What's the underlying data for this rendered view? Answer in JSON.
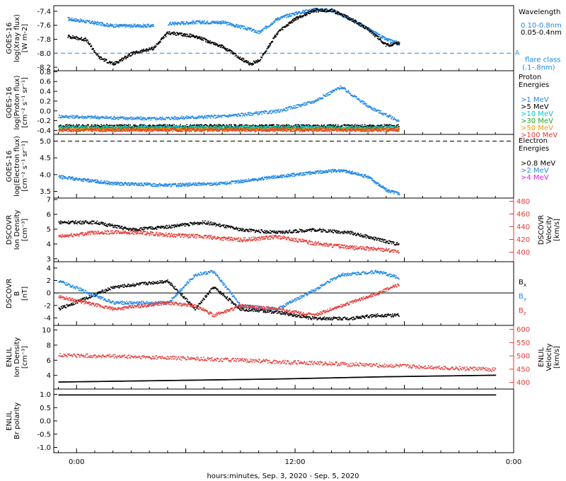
{
  "figure": {
    "xlabel": "hours:minutes, Sep.  3, 2020 - Sep.  5, 2020",
    "xticks": [
      "0:00",
      "12:00",
      "0:00"
    ],
    "colors": {
      "black": "#000000",
      "blue": "#1e88e5",
      "red": "#e53935",
      "cyan": "#00c8d0",
      "green": "#22aa22",
      "orange": "#f0a000",
      "magenta": "#e020e0"
    }
  },
  "chart_data": [
    {
      "type": "scatter",
      "id": "xray",
      "ylabel": [
        "GOES-16",
        "log(Xray flux)",
        "[W m-2]"
      ],
      "yticks": [
        "-7.4",
        "-7.6",
        "-7.8",
        "-8.0",
        "-8.2"
      ],
      "ylim": [
        -8.25,
        -7.32
      ],
      "legend_title": "Wavelength",
      "series": [
        {
          "name": "0.10-0.8nm",
          "color": "#1e88e5",
          "x": [
            -0.5,
            2.0,
            4.2,
            5.0,
            6.5,
            8.0,
            9.5,
            10.0,
            11.0,
            12.0,
            13.0,
            14.0,
            15.0,
            16.0,
            17.0,
            17.7
          ],
          "y": [
            -7.5,
            -7.6,
            -7.6,
            -7.57,
            -7.55,
            -7.55,
            -7.65,
            -7.7,
            -7.5,
            -7.42,
            -7.37,
            -7.38,
            -7.5,
            -7.65,
            -7.8,
            -7.85
          ]
        },
        {
          "name": "0.05-0.4nm",
          "color": "#000000",
          "x": [
            -0.5,
            0.5,
            1.2,
            2.0,
            3.0,
            4.2,
            5.0,
            6.5,
            8.0,
            9.5,
            10.0,
            11.0,
            12.0,
            13.0,
            14.0,
            15.0,
            16.0,
            17.0,
            17.7
          ],
          "y": [
            -7.75,
            -7.8,
            -8.05,
            -8.15,
            -8.0,
            -7.92,
            -7.7,
            -7.75,
            -7.9,
            -8.15,
            -8.1,
            -7.7,
            -7.5,
            -7.38,
            -7.38,
            -7.5,
            -7.65,
            -7.88,
            -7.85
          ]
        }
      ],
      "annotations": [
        "A",
        "flare class",
        "(.1-.8nm)"
      ],
      "reference_line": -8.0
    },
    {
      "type": "scatter",
      "id": "proton",
      "ylabel": [
        "GOES-16",
        "log(Proton flux)",
        "[cm⁻² s⁻¹ sr⁻¹]"
      ],
      "yticks": [
        "0.8",
        "0.6",
        "0.4",
        "0.2",
        "0.0",
        "-0.2",
        "-0.4"
      ],
      "ylim": [
        -0.48,
        0.82
      ],
      "legend_title": "Proton Energies",
      "series": [
        {
          "name": ">1 MeV",
          "color": "#1e88e5",
          "x": [
            -1.0,
            4.0,
            8.0,
            11.0,
            13.0,
            14.5,
            16.0,
            17.7
          ],
          "y": [
            -0.1,
            -0.15,
            -0.1,
            0.0,
            0.2,
            0.5,
            0.1,
            -0.2
          ]
        },
        {
          "name": ">5 MeV",
          "color": "#000000",
          "x": [
            -1.0,
            17.7
          ],
          "y": [
            -0.3,
            -0.3
          ]
        },
        {
          "name": ">10 MeV",
          "color": "#00c8d0",
          "x": [
            -1.0,
            17.7
          ],
          "y": [
            -0.33,
            -0.33
          ]
        },
        {
          "name": ">30 MeV",
          "color": "#22aa22",
          "x": [
            -1.0,
            17.7
          ],
          "y": [
            -0.35,
            -0.35
          ]
        },
        {
          "name": ">50 MeV",
          "color": "#f0a000",
          "x": [
            -1.0,
            17.7
          ],
          "y": [
            -0.37,
            -0.37
          ]
        },
        {
          "name": ">100 MeV",
          "color": "#e53935",
          "x": [
            -1.0,
            17.7
          ],
          "y": [
            -0.38,
            -0.38
          ]
        }
      ]
    },
    {
      "type": "scatter",
      "id": "electron",
      "ylabel": [
        "GOES-16",
        "log(Electron flux)",
        "[cm⁻² s⁻¹ sr⁻¹]"
      ],
      "yticks": [
        "5.0",
        "4.5",
        "4.0",
        "3.5"
      ],
      "ylim": [
        3.3,
        5.2
      ],
      "legend_title": "Electron Energies",
      "series": [
        {
          "name": ">0.8 MeV",
          "color": "#000000",
          "x": [],
          "y": []
        },
        {
          "name": ">2 MeV",
          "color": "#1e88e5",
          "x": [
            -1.0,
            2.0,
            5.0,
            8.0,
            11.0,
            13.0,
            14.5,
            16.0,
            17.0,
            17.7
          ],
          "y": [
            3.95,
            3.75,
            3.7,
            3.75,
            3.95,
            4.08,
            4.15,
            3.95,
            3.55,
            3.45
          ]
        },
        {
          "name": ">4 MeV",
          "color": "#e020e0",
          "x": [],
          "y": []
        }
      ],
      "reference_line": 5.0
    },
    {
      "type": "scatter",
      "id": "dscovr-density",
      "ylabel": [
        "DSCOVR",
        "Ion Density",
        "[cm⁻³]"
      ],
      "ylabel_right": [
        "DSCOVR",
        "Velocity",
        "[km/s]"
      ],
      "yticks": [
        "7",
        "6",
        "5",
        "4",
        "3"
      ],
      "yticks_right": [
        "480",
        "460",
        "440",
        "420",
        "400"
      ],
      "ylim": [
        2.8,
        7.1
      ],
      "ylim_right": [
        385,
        485
      ],
      "series": [
        {
          "name": "Density",
          "color": "#000000",
          "x": [
            -1.0,
            1.0,
            3.0,
            5.0,
            7.0,
            9.0,
            11.0,
            13.0,
            15.0,
            17.0,
            17.7
          ],
          "y": [
            5.5,
            5.5,
            5.0,
            5.2,
            5.5,
            5.0,
            4.8,
            5.0,
            4.8,
            4.2,
            4.0
          ]
        },
        {
          "name": "Velocity",
          "color": "#e53935",
          "x": [
            -1.0,
            1.0,
            3.0,
            5.0,
            7.0,
            9.0,
            11.0,
            13.0,
            15.0,
            17.0,
            17.7
          ],
          "y": [
            425,
            432,
            432,
            428,
            425,
            420,
            425,
            415,
            408,
            405,
            400
          ]
        }
      ]
    },
    {
      "type": "scatter",
      "id": "dscovr-b",
      "ylabel": [
        "DSCOVR",
        "B",
        "[nT]"
      ],
      "yticks": [
        "4",
        "2",
        "0",
        "-2",
        "-4"
      ],
      "ylim": [
        -5.2,
        5.0
      ],
      "legend": [
        "Bx",
        "By",
        "Bz"
      ],
      "series": [
        {
          "name": "Bx",
          "color": "#000000",
          "x": [
            -1.0,
            2.0,
            5.0,
            6.5,
            7.5,
            9.0,
            11.0,
            13.0,
            15.0,
            16.5,
            17.7
          ],
          "y": [
            -2.5,
            1.0,
            2.0,
            -2.5,
            1.0,
            -2.5,
            -3.0,
            -4.0,
            -4.0,
            -3.5,
            -3.5
          ]
        },
        {
          "name": "By",
          "color": "#1e88e5",
          "x": [
            -1.0,
            2.0,
            5.0,
            6.5,
            7.5,
            9.0,
            11.0,
            13.0,
            14.5,
            16.5,
            17.7
          ],
          "y": [
            2.0,
            -1.5,
            -1.5,
            3.0,
            3.5,
            -2.0,
            -2.5,
            0.5,
            3.0,
            3.5,
            2.5
          ]
        },
        {
          "name": "Bz",
          "color": "#e53935",
          "x": [
            -1.0,
            2.0,
            5.0,
            6.5,
            7.5,
            9.0,
            11.0,
            13.0,
            14.5,
            16.5,
            17.7
          ],
          "y": [
            -0.5,
            -2.5,
            -1.5,
            -2.0,
            -3.5,
            -2.0,
            -2.5,
            -3.5,
            -2.0,
            0.0,
            1.5
          ]
        }
      ]
    },
    {
      "type": "scatter",
      "id": "enlil-density",
      "ylabel": [
        "ENLIL",
        "Ion Density",
        "[cm⁻³]"
      ],
      "ylabel_right": [
        "ENLIL",
        "Velocity",
        "[km/s]"
      ],
      "yticks": [
        "10",
        "8",
        "6",
        "4"
      ],
      "yticks_right": [
        "600",
        "550",
        "500",
        "450",
        "400"
      ],
      "ylim": [
        2.2,
        10.6
      ],
      "ylim_right": [
        375,
        615
      ],
      "series": [
        {
          "name": "Density",
          "color": "#000000",
          "x": [
            -1.0,
            5.0,
            11.0,
            17.0,
            23.0
          ],
          "y": [
            3.2,
            3.4,
            3.6,
            3.9,
            4.1
          ]
        },
        {
          "name": "Velocity",
          "color": "#e53935",
          "x": [
            -1.0,
            5.0,
            11.0,
            17.0,
            23.0
          ],
          "y": [
            505,
            495,
            480,
            465,
            450
          ]
        }
      ]
    },
    {
      "type": "line",
      "id": "enlil-polarity",
      "ylabel": [
        "ENLIL",
        "Br polarity"
      ],
      "yticks": [
        "1.0",
        "0.5",
        "0.0",
        "-0.5",
        "-1.0"
      ],
      "ylim": [
        -1.2,
        1.2
      ],
      "series": [
        {
          "name": "polarity",
          "color": "#000000",
          "x": [
            -1.0,
            23.0
          ],
          "y": [
            1.0,
            1.0
          ]
        }
      ]
    }
  ]
}
